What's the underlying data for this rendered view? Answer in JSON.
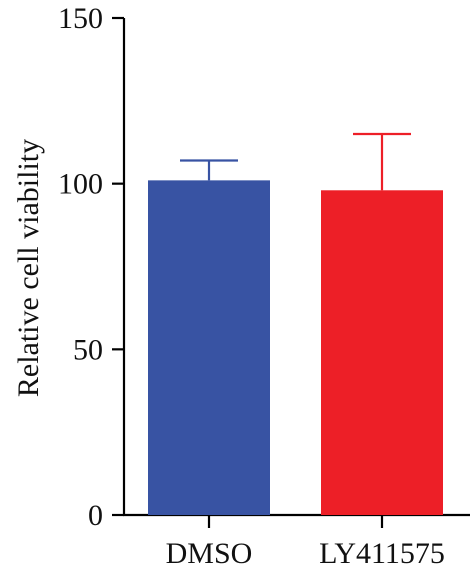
{
  "chart_data": {
    "type": "bar",
    "title": "",
    "xlabel": "",
    "ylabel": "Relative cell viability",
    "categories": [
      "DMSO",
      "LY411575"
    ],
    "values": [
      101,
      98
    ],
    "error_plus": [
      6,
      17
    ],
    "colors": [
      "#3853a3",
      "#ed1f27"
    ],
    "ylim": [
      0,
      150
    ],
    "yticks": [
      "0",
      "50",
      "100",
      "150"
    ],
    "grid": false,
    "legend": "none"
  }
}
